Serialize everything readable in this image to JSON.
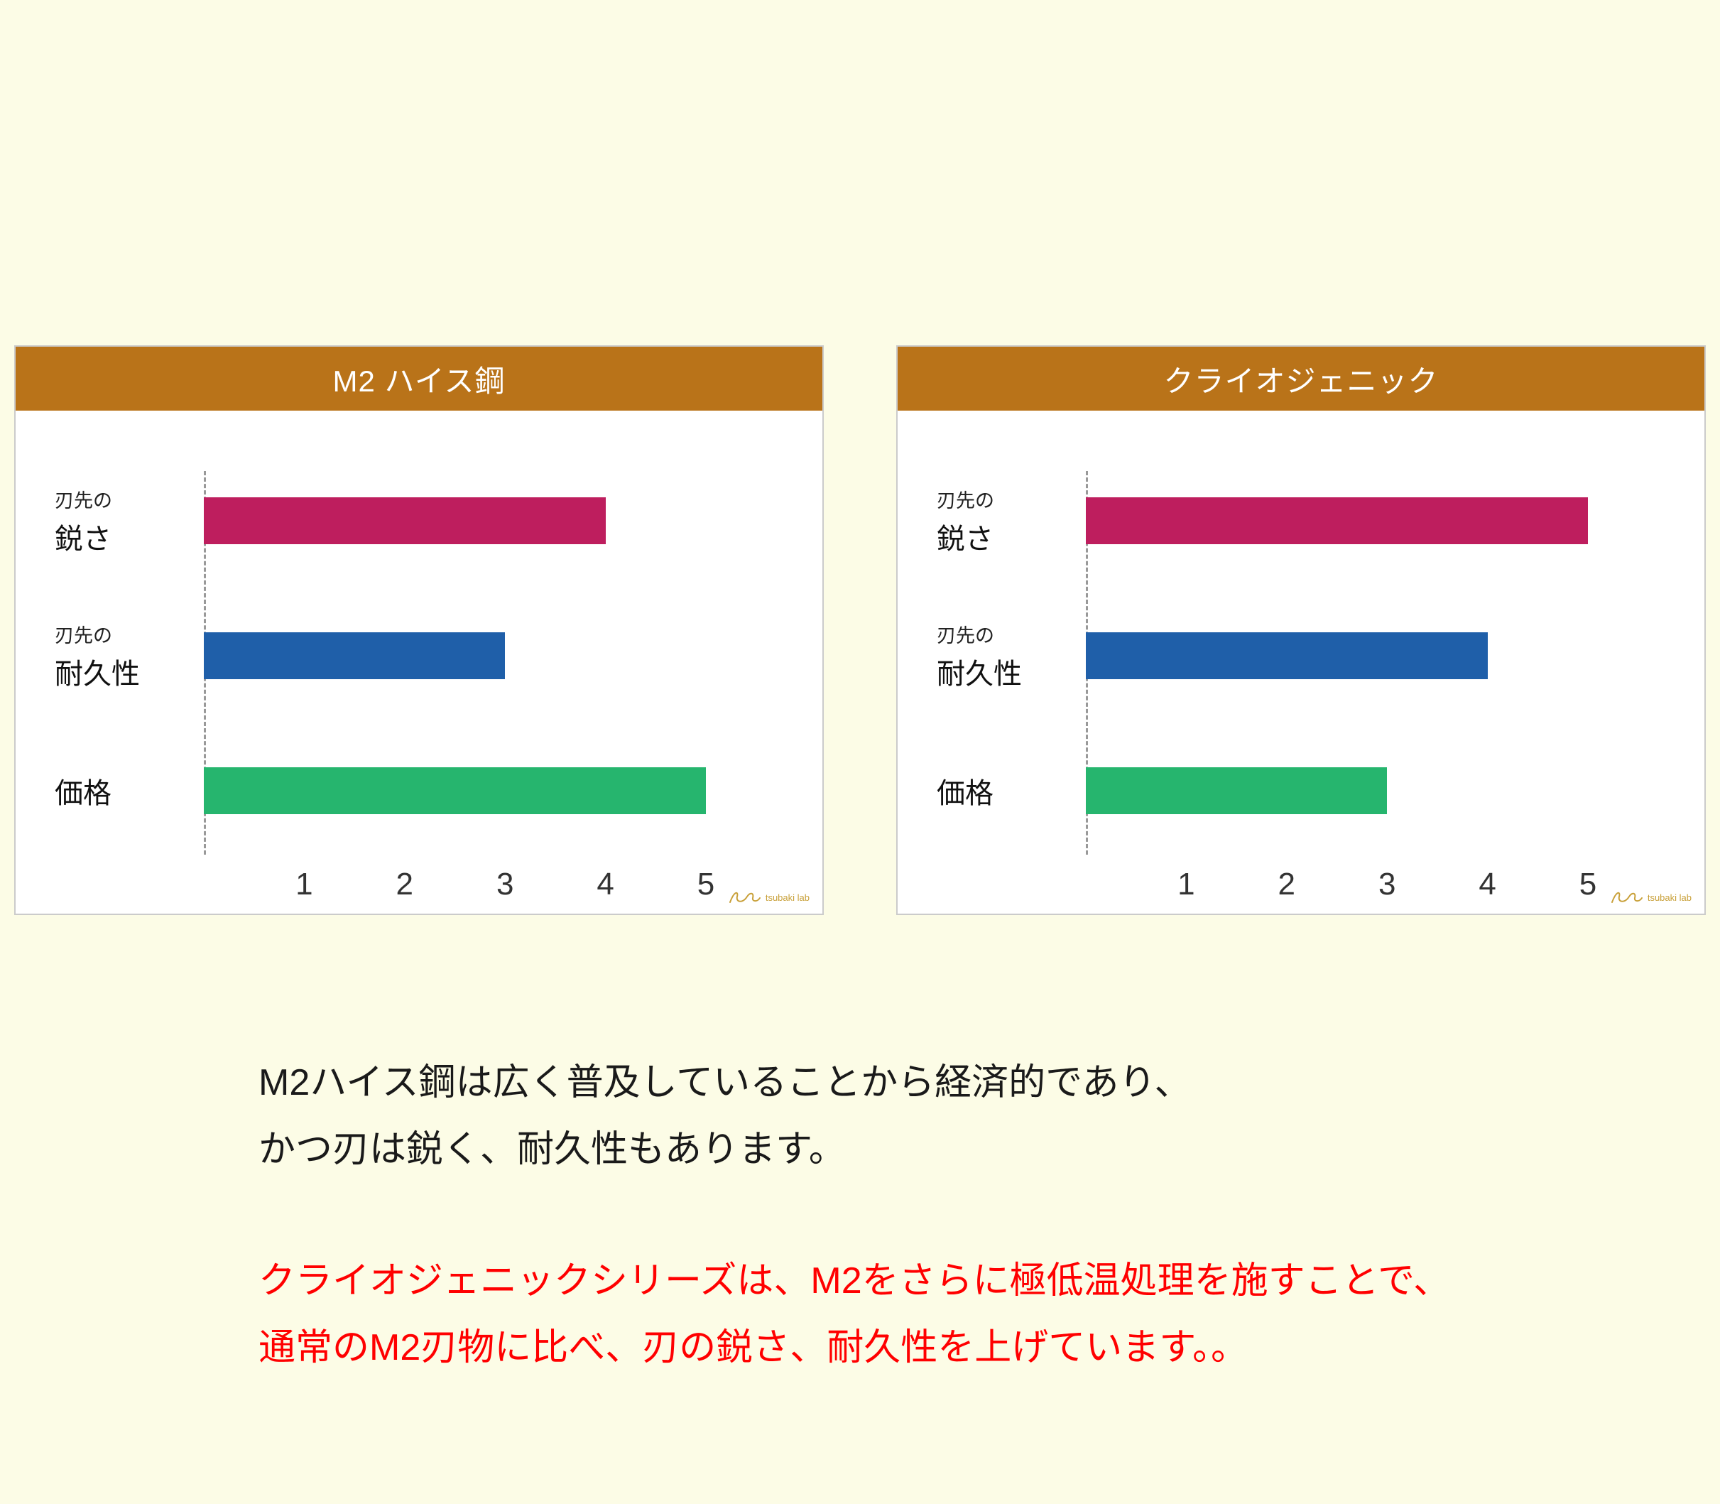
{
  "page": {
    "background": "#FCFCE6"
  },
  "theme": {
    "header_color": "#B97319",
    "header_text_color": "#FFFFFF",
    "panel_border_color": "#CBCBCB",
    "axis_line_color": "#999999",
    "red_text_color": "#FF0000",
    "logo_color": "#C9A13B"
  },
  "chart_data": [
    {
      "type": "bar",
      "orientation": "horizontal",
      "title": "M2 ハイス鋼",
      "categories": [
        "刃先の鋭さ",
        "刃先の耐久性",
        "価格"
      ],
      "category_labels": [
        {
          "top": "刃先の",
          "main": "鋭さ"
        },
        {
          "top": "刃先の",
          "main": "耐久性"
        },
        {
          "top": "",
          "main": "価格"
        }
      ],
      "values": [
        4,
        3,
        5
      ],
      "bar_colors": [
        "#BE1E5E",
        "#1F5FA9",
        "#26B56E"
      ],
      "xlim": [
        0,
        5
      ],
      "xticks": [
        1,
        2,
        3,
        4,
        5
      ],
      "grid": false,
      "legend": "none"
    },
    {
      "type": "bar",
      "orientation": "horizontal",
      "title": "クライオジェニック",
      "categories": [
        "刃先の鋭さ",
        "刃先の耐久性",
        "価格"
      ],
      "category_labels": [
        {
          "top": "刃先の",
          "main": "鋭さ"
        },
        {
          "top": "刃先の",
          "main": "耐久性"
        },
        {
          "top": "",
          "main": "価格"
        }
      ],
      "values": [
        5,
        4,
        3
      ],
      "bar_colors": [
        "#BE1E5E",
        "#1F5FA9",
        "#26B56E"
      ],
      "xlim": [
        0,
        5
      ],
      "xticks": [
        1,
        2,
        3,
        4,
        5
      ],
      "grid": false,
      "legend": "none"
    }
  ],
  "notes": {
    "black": [
      "M2ハイス鋼は広く普及していることから経済的であり、",
      "かつ刃は鋭く、耐久性もあります。"
    ],
    "red": [
      "クライオジェニックシリーズは、M2をさらに極低温処理を施すことで、",
      "通常のM2刃物に比べ、刃の鋭さ、耐久性を上げています。。"
    ]
  },
  "logo": {
    "text": "tsubaki lab"
  }
}
